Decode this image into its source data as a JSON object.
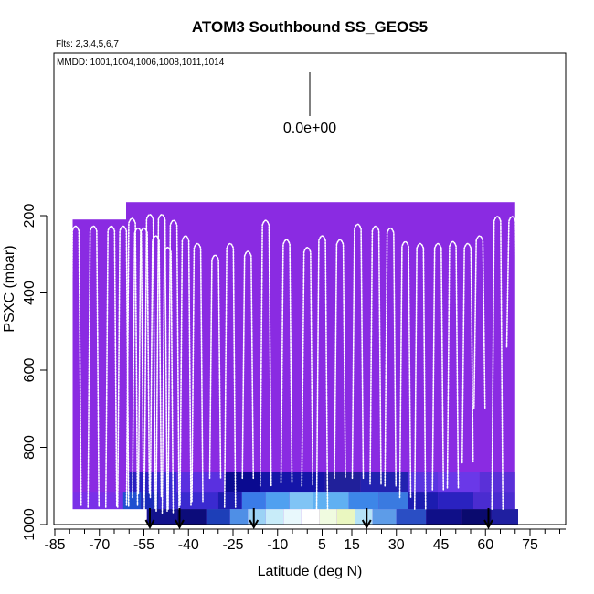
{
  "chart_data": {
    "type": "heatmap",
    "title": "ATOM3 Southbound SS_GEOS5",
    "flights_note": "Flts: 2,3,4,5,6,7",
    "dates_note": "MMDD: 1001,1004,1006,1008,1011,1014",
    "scale_label": "0.0e+00",
    "xlabel": "Latitude (deg N)",
    "ylabel": "PSXC (mbar)",
    "xlim": [
      -85,
      85
    ],
    "ylim": [
      1000,
      0
    ],
    "x_ticks": [
      -85,
      -70,
      -55,
      -40,
      -25,
      -10,
      5,
      15,
      30,
      45,
      60,
      75
    ],
    "x_tick_labels": [
      "-85",
      "-70",
      "-55",
      "-40",
      "-25",
      "-10",
      "5",
      "15",
      "30",
      "45",
      "60",
      "75"
    ],
    "y_ticks": [
      200,
      400,
      600,
      800,
      1000
    ],
    "y_tick_labels": [
      "200",
      "400",
      "600",
      "800",
      "1000"
    ],
    "background_color": "#8a2be2",
    "background_regions": [
      {
        "lat": [
          -79,
          -61
        ],
        "p": [
          210,
          960
        ]
      },
      {
        "lat": [
          -61,
          70
        ],
        "p": [
          165,
          960
        ]
      },
      {
        "lat": [
          -54,
          71
        ],
        "p": [
          960,
          1000
        ]
      }
    ],
    "heat_bands": [
      {
        "p": [
          865,
          915
        ],
        "cells": [
          {
            "lat": [
              -60,
              -52
            ],
            "color": "#2a1fc0"
          },
          {
            "lat": [
              -52,
              -44
            ],
            "color": "#3a2ad0"
          },
          {
            "lat": [
              -44,
              -28
            ],
            "color": "#5a30e0"
          },
          {
            "lat": [
              -28,
              -16
            ],
            "color": "#0a0a90"
          },
          {
            "lat": [
              -16,
              6
            ],
            "color": "#1515a8"
          },
          {
            "lat": [
              6,
              18
            ],
            "color": "#20209a"
          },
          {
            "lat": [
              18,
              34
            ],
            "color": "#2222b0"
          },
          {
            "lat": [
              34,
              44
            ],
            "color": "#5a35e0"
          },
          {
            "lat": [
              44,
              58
            ],
            "color": "#6a38e8"
          },
          {
            "lat": [
              58,
              70
            ],
            "color": "#5a30d8"
          }
        ]
      },
      {
        "p": [
          915,
          960
        ],
        "cells": [
          {
            "lat": [
              -79,
              -62
            ],
            "color": "#7a30e8"
          },
          {
            "lat": [
              -62,
              -56
            ],
            "color": "#2050d0"
          },
          {
            "lat": [
              -56,
              -50
            ],
            "color": "#1a2ab8"
          },
          {
            "lat": [
              -50,
              -30
            ],
            "color": "#3a2ad0"
          },
          {
            "lat": [
              -30,
              -22
            ],
            "color": "#1c1cb0"
          },
          {
            "lat": [
              -22,
              -14
            ],
            "color": "#3a7be8"
          },
          {
            "lat": [
              -14,
              -6
            ],
            "color": "#50a0f0"
          },
          {
            "lat": [
              -6,
              2
            ],
            "color": "#80c4f5"
          },
          {
            "lat": [
              2,
              14
            ],
            "color": "#60b0f2"
          },
          {
            "lat": [
              14,
              24
            ],
            "color": "#3d86e8"
          },
          {
            "lat": [
              24,
              34
            ],
            "color": "#3a7ae0"
          },
          {
            "lat": [
              34,
              44
            ],
            "color": "#1c1cb0"
          },
          {
            "lat": [
              44,
              56
            ],
            "color": "#2a22c0"
          },
          {
            "lat": [
              56,
              70
            ],
            "color": "#4a2cd0"
          }
        ]
      },
      {
        "p": [
          960,
          1000
        ],
        "cells": [
          {
            "lat": [
              -54,
              -44
            ],
            "color": "#12128c"
          },
          {
            "lat": [
              -44,
              -34
            ],
            "color": "#0c0c7a"
          },
          {
            "lat": [
              -34,
              -26
            ],
            "color": "#1d3fb8"
          },
          {
            "lat": [
              -26,
              -20
            ],
            "color": "#4f8fe6"
          },
          {
            "lat": [
              -20,
              -14
            ],
            "color": "#9bd2f5"
          },
          {
            "lat": [
              -14,
              -8
            ],
            "color": "#c8ecf9"
          },
          {
            "lat": [
              -8,
              -2
            ],
            "color": "#e8f8fc"
          },
          {
            "lat": [
              -2,
              4
            ],
            "color": "#ffffff"
          },
          {
            "lat": [
              4,
              10
            ],
            "color": "#f0fbe0"
          },
          {
            "lat": [
              10,
              16
            ],
            "color": "#eaf7c0"
          },
          {
            "lat": [
              16,
              22
            ],
            "color": "#b4e2f6"
          },
          {
            "lat": [
              22,
              30
            ],
            "color": "#5d9ce8"
          },
          {
            "lat": [
              30,
              40
            ],
            "color": "#2a4ec4"
          },
          {
            "lat": [
              40,
              52
            ],
            "color": "#0f0f88"
          },
          {
            "lat": [
              52,
              62
            ],
            "color": "#0a0a6e"
          },
          {
            "lat": [
              62,
              71
            ],
            "color": "#1f1fa0"
          }
        ]
      }
    ],
    "arrows_lat": [
      -53,
      -43,
      -18,
      20,
      61
    ],
    "profiles": [
      {
        "lat": -78,
        "top": 225,
        "bottom": 950
      },
      {
        "lat": -72,
        "top": 225,
        "bottom": 955
      },
      {
        "lat": -66,
        "top": 225,
        "bottom": 955
      },
      {
        "lat": -62,
        "top": 225,
        "bottom": 955
      },
      {
        "lat": -59,
        "top": 205,
        "bottom": 950
      },
      {
        "lat": -57,
        "top": 230,
        "bottom": 930
      },
      {
        "lat": -55,
        "top": 230,
        "bottom": 920
      },
      {
        "lat": -53,
        "top": 195,
        "bottom": 960
      },
      {
        "lat": -51,
        "top": 250,
        "bottom": 930
      },
      {
        "lat": -49,
        "top": 195,
        "bottom": 965
      },
      {
        "lat": -47,
        "top": 280,
        "bottom": 970
      },
      {
        "lat": -45,
        "top": 210,
        "bottom": 960
      },
      {
        "lat": -41,
        "top": 250,
        "bottom": 950
      },
      {
        "lat": -37,
        "top": 270,
        "bottom": 940
      },
      {
        "lat": -31,
        "top": 300,
        "bottom": 880
      },
      {
        "lat": -26,
        "top": 270,
        "bottom": 955
      },
      {
        "lat": -20,
        "top": 290,
        "bottom": 880
      },
      {
        "lat": -14,
        "top": 210,
        "bottom": 900
      },
      {
        "lat": -7,
        "top": 260,
        "bottom": 890
      },
      {
        "lat": 0,
        "top": 280,
        "bottom": 900
      },
      {
        "lat": 5,
        "top": 250,
        "bottom": 960
      },
      {
        "lat": 11,
        "top": 260,
        "bottom": 880
      },
      {
        "lat": 17,
        "top": 220,
        "bottom": 880
      },
      {
        "lat": 23,
        "top": 225,
        "bottom": 895
      },
      {
        "lat": 28,
        "top": 230,
        "bottom": 900
      },
      {
        "lat": 33,
        "top": 265,
        "bottom": 930
      },
      {
        "lat": 38,
        "top": 270,
        "bottom": 960
      },
      {
        "lat": 44,
        "top": 270,
        "bottom": 910
      },
      {
        "lat": 49,
        "top": 265,
        "bottom": 905
      },
      {
        "lat": 54,
        "top": 270,
        "bottom": 840
      },
      {
        "lat": 58,
        "top": 250,
        "bottom": 700
      },
      {
        "lat": 64,
        "top": 200,
        "bottom": 960
      },
      {
        "lat": 69,
        "top": 200,
        "bottom": 540
      }
    ]
  }
}
